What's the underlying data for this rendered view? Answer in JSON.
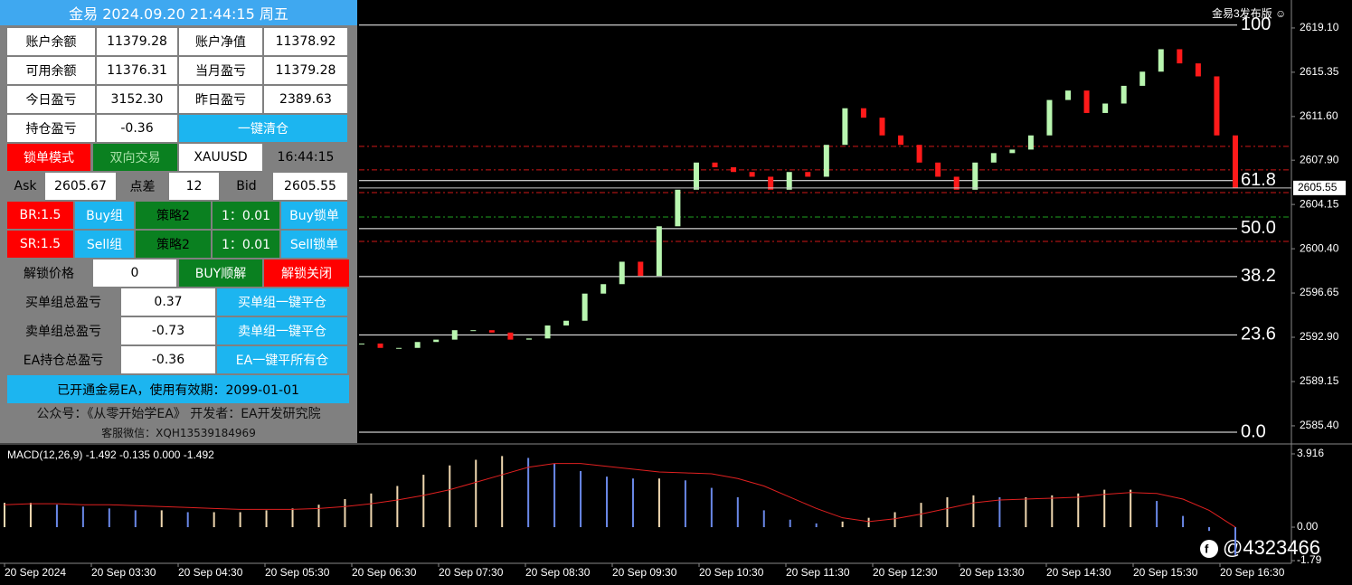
{
  "panel": {
    "title": "金易 2024.09.20 21:44:15 周五",
    "rows": [
      [
        "账户余额",
        "11379.28",
        "账户净值",
        "11378.92"
      ],
      [
        "可用余额",
        "11376.31",
        "当月盈亏",
        "11379.28"
      ],
      [
        "今日盈亏",
        "3152.30",
        "昨日盈亏",
        "2389.63"
      ],
      [
        "持仓盈亏",
        "-0.36",
        "一键清仓"
      ],
      [
        "锁单模式",
        "双向交易",
        "XAUUSD",
        "16:44:15"
      ],
      [
        "Ask",
        "2605.67",
        "点差",
        "12",
        "Bid",
        "2605.55"
      ],
      [
        "BR:1.5",
        "Buy组",
        "策略2",
        "1：0.01",
        "Buy锁单"
      ],
      [
        "SR:1.5",
        "Sell组",
        "策略2",
        "1：0.01",
        "Sell锁单"
      ],
      [
        "解锁价格",
        "0",
        "BUY顺解",
        "解锁关闭"
      ],
      [
        "买单组总盈亏",
        "0.37",
        "买单组一键平仓"
      ],
      [
        "卖单组总盈亏",
        "-0.73",
        "卖单组一键平仓"
      ],
      [
        "EA持仓总盈亏",
        "-0.36",
        "EA一键平所有仓"
      ]
    ],
    "notice": "已开通金易EA，使用有效期：2099-01-01",
    "footer": [
      "公众号：《从零开始学EA》 开发者：EA开发研究院",
      "客服微信：XQH13539184969"
    ]
  },
  "chart_data": {
    "type": "candlestick",
    "brand": "金易3发布版 ☺",
    "x_labels": [
      "20 Sep 2024",
      "20 Sep 03:30",
      "20 Sep 04:30",
      "20 Sep 05:30",
      "20 Sep 06:30",
      "20 Sep 07:30",
      "20 Sep 08:30",
      "20 Sep 09:30",
      "20 Sep 10:30",
      "20 Sep 11:30",
      "20 Sep 12:30",
      "20 Sep 13:30",
      "20 Sep 14:30",
      "20 Sep 15:30",
      "20 Sep 16:30"
    ],
    "closes": [
      2592.37,
      2592.0,
      2592.0,
      2592.5,
      2592.7,
      2593.5,
      2593.5,
      2593.3,
      2592.7,
      2592.8,
      2593.9,
      2594.3,
      2596.6,
      2597.4,
      2599.3,
      2598.1,
      2602.3,
      2605.4,
      2607.7,
      2607.3,
      2606.9,
      2606.5,
      2605.4,
      2606.9,
      2606.5,
      2609.2,
      2612.3,
      2611.5,
      2610.0,
      2609.2,
      2607.7,
      2606.5,
      2605.4,
      2607.7,
      2608.5,
      2608.8,
      2610.0,
      2613.0,
      2613.8,
      2611.9,
      2612.7,
      2614.2,
      2615.4,
      2617.3,
      2616.1,
      2615.0,
      2610.0,
      2605.55
    ],
    "up_color": "#b9f6b0",
    "down_color": "#ff1a1a",
    "ylim": [
      2583.94,
      2621.47
    ],
    "yticks": [
      {
        "value": 2619.1,
        "label": "2619.10"
      },
      {
        "value": 2615.35,
        "label": "2615.35"
      },
      {
        "value": 2611.6,
        "label": "2611.60"
      },
      {
        "value": 2607.9,
        "label": "2607.90"
      },
      {
        "value": 2604.15,
        "label": "2604.15"
      },
      {
        "value": 2600.4,
        "label": "2600.40"
      },
      {
        "value": 2596.65,
        "label": "2596.65"
      },
      {
        "value": 2592.9,
        "label": "2592.90"
      },
      {
        "value": 2589.15,
        "label": "2589.15"
      },
      {
        "value": 2585.4,
        "label": "2585.40"
      }
    ],
    "current_price": 2605.55,
    "fib_levels": [
      {
        "label": "100",
        "price": 2619.34
      },
      {
        "label": "61.8",
        "price": 2606.17
      },
      {
        "label": "50.0",
        "price": 2602.1
      },
      {
        "label": "38.2",
        "price": 2598.04
      },
      {
        "label": "23.6",
        "price": 2593.1
      },
      {
        "label": "0.0",
        "price": 2584.86
      }
    ],
    "fib_color": "#ffffff",
    "order_lines": [
      {
        "price": 2609.07,
        "color": "#d01818"
      },
      {
        "price": 2607.08,
        "color": "#d01818"
      },
      {
        "price": 2605.16,
        "color": "#d01818"
      },
      {
        "price": 2601.02,
        "color": "#d01818"
      },
      {
        "price": 2603.09,
        "color": "#20a020"
      }
    ],
    "macd": {
      "label": "MACD(12,26,9) -1.492 -0.135 0.000 -1.492",
      "ylim": [
        -1.98,
        4.35
      ],
      "yticks": [
        3.916,
        {
          "value": 0,
          "label": "0.00"
        },
        -1.79
      ],
      "histogram": [
        1.3,
        1.3,
        1.2,
        1.1,
        1.0,
        0.9,
        0.9,
        0.8,
        0.8,
        0.8,
        0.9,
        1.0,
        1.2,
        1.5,
        1.8,
        2.2,
        2.8,
        3.3,
        3.6,
        3.8,
        3.7,
        3.4,
        3.0,
        2.7,
        2.6,
        2.6,
        2.5,
        2.1,
        1.6,
        0.9,
        0.4,
        0.2,
        0.3,
        0.5,
        0.8,
        1.3,
        1.6,
        1.7,
        1.6,
        1.6,
        1.7,
        1.8,
        2.0,
        2.0,
        1.4,
        0.6,
        -0.2,
        -1.492
      ],
      "signal": [
        1.2,
        1.25,
        1.25,
        1.2,
        1.2,
        1.15,
        1.1,
        1.05,
        1.0,
        0.95,
        0.95,
        0.95,
        1.0,
        1.1,
        1.25,
        1.45,
        1.7,
        2.0,
        2.4,
        2.8,
        3.2,
        3.4,
        3.4,
        3.25,
        3.1,
        2.95,
        2.9,
        2.85,
        2.6,
        2.2,
        1.6,
        1.0,
        0.5,
        0.3,
        0.45,
        0.7,
        1.0,
        1.3,
        1.45,
        1.5,
        1.55,
        1.6,
        1.75,
        1.85,
        1.8,
        1.5,
        0.9,
        0.0
      ],
      "rise_color": "#f0d8b0",
      "fall_color": "#6a88e8",
      "signal_color": "#e02020"
    }
  },
  "watermark": "@4323466"
}
